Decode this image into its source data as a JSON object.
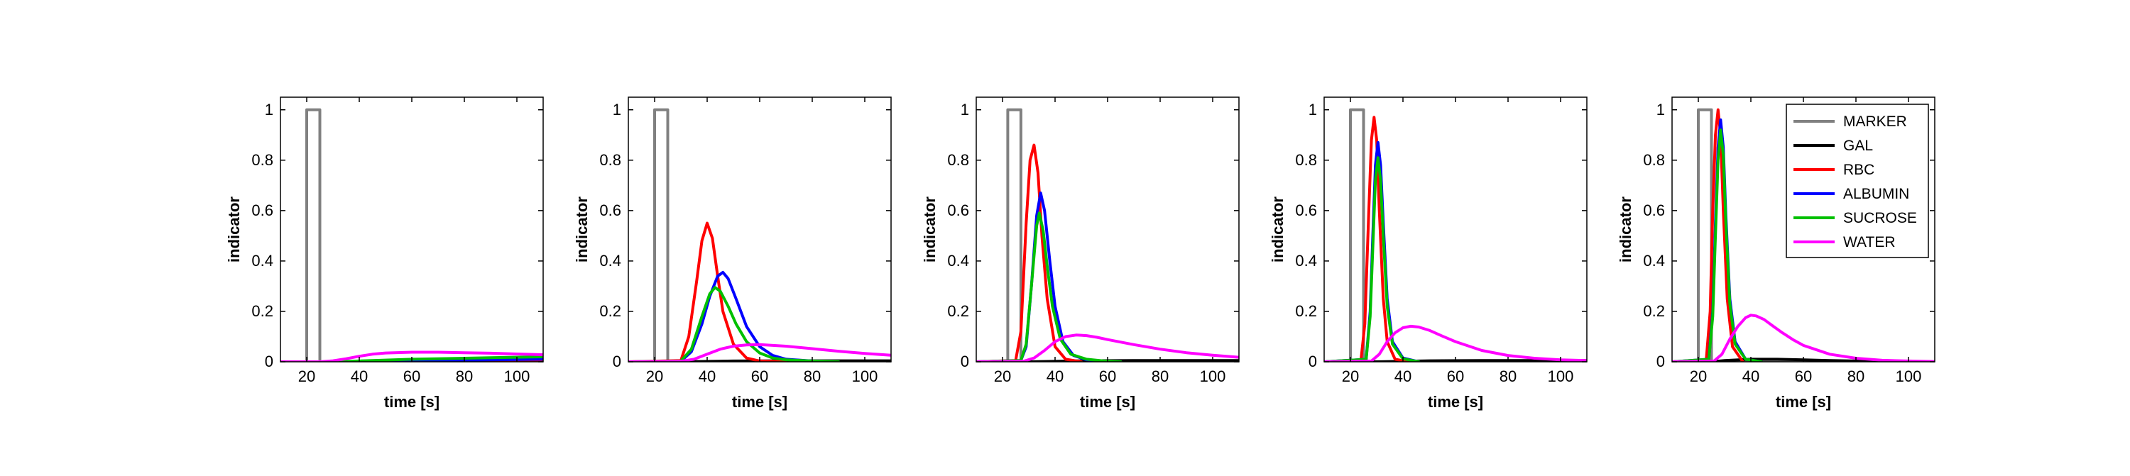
{
  "series_styles": [
    {
      "name": "MARKER",
      "color": "#808080"
    },
    {
      "name": "GAL",
      "color": "#000000"
    },
    {
      "name": "RBC",
      "color": "#ff0000"
    },
    {
      "name": "ALBUMIN",
      "color": "#0000ff"
    },
    {
      "name": "SUCROSE",
      "color": "#00c000"
    },
    {
      "name": "WATER",
      "color": "#ff00ff"
    }
  ],
  "chart_data": [
    {
      "type": "line",
      "xlabel": "time [s]",
      "ylabel": "indicator",
      "xlim": [
        10,
        110
      ],
      "ylim": [
        0,
        1.05
      ],
      "xticks": [
        20,
        40,
        60,
        80,
        100
      ],
      "yticks": [
        0,
        0.2,
        0.4,
        0.6,
        0.8,
        1
      ],
      "xtick_labels": [
        "20",
        "40",
        "60",
        "80",
        "100"
      ],
      "ytick_labels": [
        "0",
        "0.2",
        "0.4",
        "0.6",
        "0.8",
        "1"
      ],
      "legend": null,
      "series": [
        {
          "name": "MARKER",
          "x": [
            10,
            20,
            20,
            25,
            25,
            110
          ],
          "y": [
            0,
            0,
            1,
            1,
            0,
            0
          ]
        },
        {
          "name": "GAL",
          "x": [
            10,
            30,
            50,
            70,
            90,
            110
          ],
          "y": [
            0,
            0,
            0.001,
            0.002,
            0.003,
            0.004
          ]
        },
        {
          "name": "RBC",
          "x": [
            10,
            30,
            50,
            70,
            90,
            110
          ],
          "y": [
            0,
            0,
            0,
            0,
            0,
            0
          ]
        },
        {
          "name": "ALBUMIN",
          "x": [
            10,
            30,
            50,
            70,
            90,
            110
          ],
          "y": [
            0,
            0,
            0.002,
            0.005,
            0.008,
            0.01
          ]
        },
        {
          "name": "SUCROSE",
          "x": [
            10,
            30,
            45,
            60,
            75,
            90,
            110
          ],
          "y": [
            0,
            0,
            0.005,
            0.01,
            0.013,
            0.016,
            0.02
          ]
        },
        {
          "name": "WATER",
          "x": [
            10,
            25,
            30,
            35,
            40,
            45,
            50,
            60,
            70,
            80,
            90,
            100,
            110
          ],
          "y": [
            0,
            0,
            0.004,
            0.012,
            0.022,
            0.03,
            0.035,
            0.038,
            0.038,
            0.036,
            0.034,
            0.031,
            0.028
          ]
        }
      ]
    },
    {
      "type": "line",
      "xlabel": "time [s]",
      "ylabel": "indicator",
      "xlim": [
        10,
        110
      ],
      "ylim": [
        0,
        1.05
      ],
      "xticks": [
        20,
        40,
        60,
        80,
        100
      ],
      "yticks": [
        0,
        0.2,
        0.4,
        0.6,
        0.8,
        1
      ],
      "xtick_labels": [
        "20",
        "40",
        "60",
        "80",
        "100"
      ],
      "ytick_labels": [
        "0",
        "0.2",
        "0.4",
        "0.6",
        "0.8",
        "1"
      ],
      "legend": null,
      "series": [
        {
          "name": "MARKER",
          "x": [
            10,
            20,
            20,
            25,
            25,
            110
          ],
          "y": [
            0,
            0,
            1,
            1,
            0,
            0
          ]
        },
        {
          "name": "GAL",
          "x": [
            10,
            30,
            50,
            70,
            110
          ],
          "y": [
            0,
            0,
            0.003,
            0.004,
            0.004
          ]
        },
        {
          "name": "RBC",
          "x": [
            10,
            30,
            33,
            36,
            38,
            40,
            42,
            44,
            46,
            50,
            55,
            60,
            70
          ],
          "y": [
            0,
            0.005,
            0.1,
            0.32,
            0.48,
            0.55,
            0.49,
            0.34,
            0.2,
            0.07,
            0.015,
            0.003,
            0
          ]
        },
        {
          "name": "ALBUMIN",
          "x": [
            10,
            30,
            34,
            38,
            41,
            44,
            46,
            48,
            51,
            55,
            60,
            65,
            70,
            80,
            90
          ],
          "y": [
            0,
            0.002,
            0.04,
            0.15,
            0.26,
            0.34,
            0.355,
            0.33,
            0.25,
            0.14,
            0.06,
            0.025,
            0.01,
            0.003,
            0
          ]
        },
        {
          "name": "SUCROSE",
          "x": [
            10,
            30,
            34,
            38,
            41,
            43,
            45,
            48,
            51,
            55,
            60,
            65,
            70,
            80,
            90
          ],
          "y": [
            0,
            0.003,
            0.05,
            0.18,
            0.27,
            0.295,
            0.28,
            0.22,
            0.15,
            0.08,
            0.035,
            0.015,
            0.008,
            0.003,
            0
          ]
        },
        {
          "name": "WATER",
          "x": [
            10,
            30,
            35,
            40,
            45,
            50,
            55,
            60,
            70,
            80,
            90,
            100,
            110
          ],
          "y": [
            0,
            0.002,
            0.01,
            0.03,
            0.05,
            0.062,
            0.067,
            0.068,
            0.062,
            0.052,
            0.042,
            0.033,
            0.026
          ]
        }
      ]
    },
    {
      "type": "line",
      "xlabel": "time [s]",
      "ylabel": "indicator",
      "xlim": [
        10,
        110
      ],
      "ylim": [
        0,
        1.05
      ],
      "xticks": [
        20,
        40,
        60,
        80,
        100
      ],
      "yticks": [
        0,
        0.2,
        0.4,
        0.6,
        0.8,
        1
      ],
      "xtick_labels": [
        "20",
        "40",
        "60",
        "80",
        "100"
      ],
      "ytick_labels": [
        "0",
        "0.2",
        "0.4",
        "0.6",
        "0.8",
        "1"
      ],
      "legend": null,
      "series": [
        {
          "name": "MARKER",
          "x": [
            10,
            22,
            22,
            27,
            27,
            110
          ],
          "y": [
            0,
            0,
            1,
            1,
            0,
            0
          ]
        },
        {
          "name": "GAL",
          "x": [
            10,
            30,
            50,
            70,
            110
          ],
          "y": [
            0,
            0,
            0.004,
            0.005,
            0.005
          ]
        },
        {
          "name": "RBC",
          "x": [
            10,
            25,
            27,
            29,
            30.5,
            32,
            33.5,
            35,
            37,
            40,
            44,
            50
          ],
          "y": [
            0,
            0.005,
            0.12,
            0.55,
            0.8,
            0.86,
            0.75,
            0.5,
            0.25,
            0.06,
            0.01,
            0
          ]
        },
        {
          "name": "ALBUMIN",
          "x": [
            10,
            27,
            29,
            31,
            33,
            34.5,
            36,
            38,
            40,
            43,
            47,
            52,
            58,
            65
          ],
          "y": [
            0,
            0.005,
            0.06,
            0.3,
            0.58,
            0.67,
            0.6,
            0.4,
            0.22,
            0.08,
            0.025,
            0.008,
            0.003,
            0
          ]
        },
        {
          "name": "SUCROSE",
          "x": [
            10,
            27,
            29,
            31,
            33,
            34,
            35.5,
            37,
            39,
            42,
            46,
            52,
            58,
            65
          ],
          "y": [
            0,
            0.005,
            0.07,
            0.3,
            0.54,
            0.59,
            0.52,
            0.38,
            0.22,
            0.09,
            0.03,
            0.01,
            0.004,
            0
          ]
        },
        {
          "name": "WATER",
          "x": [
            10,
            28,
            32,
            36,
            40,
            44,
            48,
            52,
            56,
            60,
            70,
            80,
            90,
            100,
            110
          ],
          "y": [
            0,
            0.002,
            0.015,
            0.045,
            0.08,
            0.1,
            0.106,
            0.104,
            0.097,
            0.088,
            0.068,
            0.05,
            0.036,
            0.026,
            0.018
          ]
        }
      ]
    },
    {
      "type": "line",
      "xlabel": "time [s]",
      "ylabel": "indicator",
      "xlim": [
        10,
        110
      ],
      "ylim": [
        0,
        1.05
      ],
      "xticks": [
        20,
        40,
        60,
        80,
        100
      ],
      "yticks": [
        0,
        0.2,
        0.4,
        0.6,
        0.8,
        1
      ],
      "xtick_labels": [
        "20",
        "40",
        "60",
        "80",
        "100"
      ],
      "ytick_labels": [
        "0",
        "0.2",
        "0.4",
        "0.6",
        "0.8",
        "1"
      ],
      "legend": null,
      "series": [
        {
          "name": "MARKER",
          "x": [
            10,
            20,
            20,
            25,
            25,
            110
          ],
          "y": [
            0,
            0,
            1,
            1,
            0,
            0
          ]
        },
        {
          "name": "GAL",
          "x": [
            10,
            30,
            50,
            70,
            110
          ],
          "y": [
            0,
            0,
            0.004,
            0.005,
            0.005
          ]
        },
        {
          "name": "RBC",
          "x": [
            10,
            24,
            25.5,
            27,
            28,
            29,
            30,
            31,
            32.5,
            34,
            37,
            42
          ],
          "y": [
            0,
            0.005,
            0.15,
            0.6,
            0.88,
            0.97,
            0.88,
            0.6,
            0.25,
            0.08,
            0.01,
            0
          ]
        },
        {
          "name": "ALBUMIN",
          "x": [
            10,
            26,
            27.5,
            28.5,
            29.5,
            30.5,
            31.5,
            32.5,
            34,
            36,
            40,
            46
          ],
          "y": [
            0,
            0.01,
            0.2,
            0.5,
            0.78,
            0.87,
            0.78,
            0.55,
            0.25,
            0.08,
            0.015,
            0
          ]
        },
        {
          "name": "SUCROSE",
          "x": [
            10,
            26,
            27.5,
            28.5,
            29.5,
            30.5,
            31.5,
            32.5,
            34,
            36,
            40,
            46
          ],
          "y": [
            0,
            0.01,
            0.18,
            0.45,
            0.72,
            0.81,
            0.72,
            0.5,
            0.22,
            0.07,
            0.012,
            0
          ]
        },
        {
          "name": "WATER",
          "x": [
            10,
            28,
            31,
            34,
            37,
            40,
            43,
            46,
            50,
            55,
            60,
            70,
            80,
            90,
            100,
            110
          ],
          "y": [
            0,
            0.003,
            0.03,
            0.08,
            0.115,
            0.135,
            0.141,
            0.138,
            0.125,
            0.102,
            0.08,
            0.045,
            0.025,
            0.014,
            0.008,
            0.005
          ]
        }
      ]
    },
    {
      "type": "line",
      "xlabel": "time [s]",
      "ylabel": "indicator",
      "xlim": [
        10,
        110
      ],
      "ylim": [
        0,
        1.05
      ],
      "xticks": [
        20,
        40,
        60,
        80,
        100
      ],
      "yticks": [
        0,
        0.2,
        0.4,
        0.6,
        0.8,
        1
      ],
      "xtick_labels": [
        "20",
        "40",
        "60",
        "80",
        "100"
      ],
      "ytick_labels": [
        "0",
        "0.2",
        "0.4",
        "0.6",
        "0.8",
        "1"
      ],
      "legend": "top-right",
      "series": [
        {
          "name": "MARKER",
          "x": [
            10,
            20,
            20,
            25,
            25,
            110
          ],
          "y": [
            0,
            0,
            1,
            1,
            0,
            0
          ]
        },
        {
          "name": "GAL",
          "x": [
            10,
            25,
            30,
            40,
            50,
            60,
            70,
            80,
            110
          ],
          "y": [
            0,
            0,
            0.005,
            0.01,
            0.01,
            0.008,
            0.005,
            0.003,
            0
          ]
        },
        {
          "name": "RBC",
          "x": [
            10,
            23,
            24.5,
            25.5,
            26.5,
            27.5,
            28.5,
            29.5,
            31,
            33,
            37
          ],
          "y": [
            0,
            0.005,
            0.2,
            0.6,
            0.9,
            1.0,
            0.9,
            0.6,
            0.25,
            0.06,
            0
          ]
        },
        {
          "name": "ALBUMIN",
          "x": [
            10,
            24,
            25.5,
            26.5,
            27.5,
            28.5,
            29.5,
            30.5,
            32,
            34,
            38,
            44
          ],
          "y": [
            0,
            0.01,
            0.2,
            0.55,
            0.85,
            0.96,
            0.85,
            0.58,
            0.25,
            0.08,
            0.01,
            0
          ]
        },
        {
          "name": "SUCROSE",
          "x": [
            10,
            24,
            25.5,
            26.5,
            27.5,
            28.5,
            29.5,
            30.5,
            32,
            34,
            38,
            44
          ],
          "y": [
            0,
            0.01,
            0.18,
            0.5,
            0.8,
            0.92,
            0.82,
            0.55,
            0.23,
            0.07,
            0.01,
            0
          ]
        },
        {
          "name": "WATER",
          "x": [
            10,
            26,
            29,
            32,
            35,
            38,
            40,
            42,
            45,
            48,
            52,
            56,
            60,
            70,
            80,
            90,
            100,
            110
          ],
          "y": [
            0,
            0.003,
            0.03,
            0.09,
            0.14,
            0.175,
            0.185,
            0.182,
            0.168,
            0.145,
            0.115,
            0.088,
            0.065,
            0.03,
            0.014,
            0.006,
            0.003,
            0.001
          ]
        }
      ]
    }
  ]
}
